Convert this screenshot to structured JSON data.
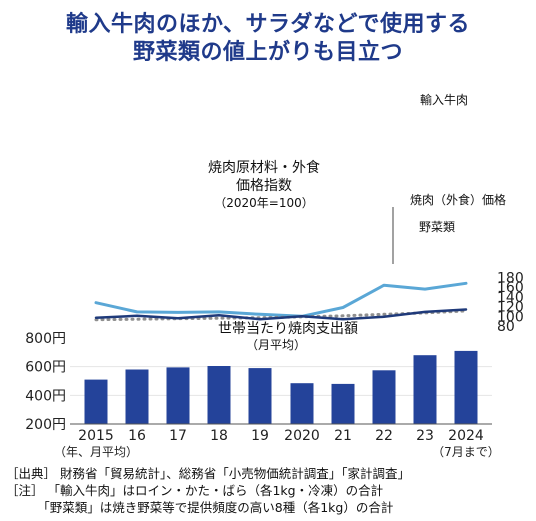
{
  "header": {
    "title_line1": "輸入牛肉のほか、サラダなどで使用する",
    "title_line2": "野菜類の値上がりも目立つ"
  },
  "colors": {
    "title": "#1f3a8a",
    "beef": "#5aa7d6",
    "yakiniku": "#8f8f8f",
    "vegetables": "#1f3a7a",
    "bars": "#24439a"
  },
  "chart_data": [
    {
      "type": "line",
      "title": "焼肉原材料・外食価格指数",
      "title_lines": [
        "焼肉原材料・外食",
        "価格指数"
      ],
      "subtitle": "（2020年=100）",
      "x": [
        "2015",
        "16",
        "17",
        "18",
        "19",
        "2020",
        "21",
        "22",
        "23",
        "2024"
      ],
      "y_axis_side": "right",
      "ylim": [
        80,
        180
      ],
      "yticks": [
        80,
        100,
        120,
        140,
        160,
        180
      ],
      "series": [
        {
          "name": "輸入牛肉",
          "style": "solid",
          "values": [
            128,
            109,
            108,
            109,
            104,
            100,
            118,
            164,
            156,
            168
          ]
        },
        {
          "name": "焼肉（外食）価格",
          "style": "dotted",
          "values": [
            93,
            94,
            95,
            96,
            97,
            99,
            101,
            104,
            107,
            111
          ]
        },
        {
          "name": "野菜類",
          "style": "solid",
          "values": [
            97,
            101,
            96,
            102,
            94,
            100,
            94,
            99,
            109,
            114
          ]
        }
      ]
    },
    {
      "type": "bar",
      "title": "世帯当たり焼肉支出額",
      "subtitle": "（月平均）",
      "categories": [
        "2015",
        "16",
        "17",
        "18",
        "19",
        "2020",
        "21",
        "22",
        "23",
        "2024"
      ],
      "values": [
        510,
        580,
        595,
        605,
        590,
        485,
        480,
        575,
        680,
        710
      ],
      "ylim": [
        200,
        800
      ],
      "yticks": [
        "200円",
        "400円",
        "600円",
        "800円"
      ],
      "x_sublabels": {
        "first": "（年、月平均）",
        "last": "（7月まで）"
      }
    }
  ],
  "notes": {
    "source": "［出典］ 財務省「貿易統計」、総務省「小売物価統計調査」「家計調査」",
    "note1": "［注］ 「輸入牛肉」はロイン・かた・ばら（各1kg・冷凍）の合計",
    "note2": "　　　「野菜類」は焼き野菜等で提供頻度の高い8種（各1kg）の合計"
  }
}
